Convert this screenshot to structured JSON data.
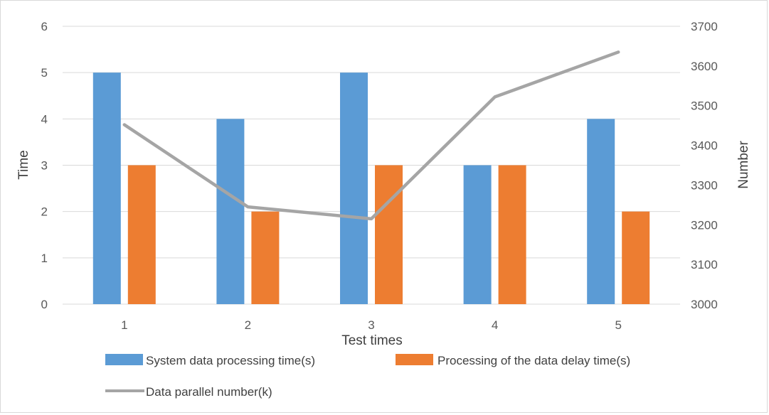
{
  "chart_data": {
    "type": "bar",
    "categories": [
      "1",
      "2",
      "3",
      "4",
      "5"
    ],
    "xlabel": "Test times",
    "ylabel": "Time",
    "y2label": "Number",
    "ylim": [
      0,
      6
    ],
    "y2lim": [
      3000,
      3700
    ],
    "yticks": [
      "0",
      "1",
      "2",
      "3",
      "4",
      "5",
      "6"
    ],
    "y2ticks": [
      "3000",
      "3100",
      "3200",
      "3300",
      "3400",
      "3500",
      "3600",
      "3700"
    ],
    "grid": true,
    "legend_position": "bottom",
    "series": [
      {
        "name": "System data processing time(s)",
        "kind": "bar",
        "axis": "left",
        "color": "#5b9bd5",
        "values": [
          5,
          4,
          5,
          3,
          4
        ]
      },
      {
        "name": "Processing of the data delay time(s)",
        "kind": "bar",
        "axis": "left",
        "color": "#ed7d31",
        "values": [
          3,
          2,
          3,
          3,
          2
        ]
      },
      {
        "name": "Data parallel number(k)",
        "kind": "line",
        "axis": "right",
        "color": "#a5a5a5",
        "values": [
          3452,
          3245,
          3215,
          3522,
          3635
        ]
      }
    ]
  }
}
